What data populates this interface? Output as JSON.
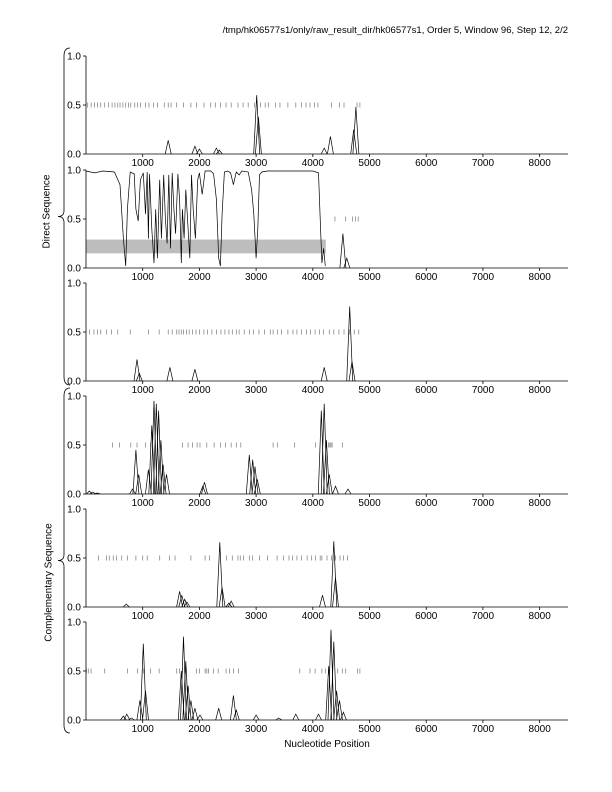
{
  "header": {
    "title": "/tmp/hk06577s1/only/raw_result_dir/hk06577s1, Order 5, Window 96, Step 12, 2/2"
  },
  "groups": {
    "direct": "Direct Sequence",
    "complementary": "Complementary Sequence"
  },
  "chart_data": {
    "type": "line",
    "xlabel": "Nucleotide Position",
    "xlim": [
      0,
      8500
    ],
    "ylim": [
      0,
      1
    ],
    "xticks": [
      1000,
      2000,
      3000,
      4000,
      5000,
      6000,
      7000,
      8000
    ],
    "yticks": [
      0.0,
      0.5,
      1.0
    ],
    "ytick_labels": [
      "0.0",
      "0.5",
      "1.0"
    ],
    "panels": [
      {
        "group": "direct",
        "tick_row_y": 0.5,
        "tick_marks": [
          30,
          90,
          150,
          200,
          260,
          330,
          400,
          460,
          510,
          560,
          600,
          650,
          700,
          750,
          790,
          860,
          910,
          960,
          1050,
          1110,
          1190,
          1260,
          1380,
          1450,
          1500,
          1600,
          1720,
          1850,
          1950,
          2080,
          2200,
          2280,
          2370,
          2470,
          2560,
          2680,
          2770,
          2860,
          2970,
          3080,
          3160,
          3220,
          3340,
          3420,
          3560,
          3700,
          3800,
          3880,
          3950,
          4030,
          4090,
          4330,
          4470,
          4550,
          4780,
          4830
        ],
        "peaks": [
          [
            1450,
            0.14
          ],
          [
            1920,
            0.08
          ],
          [
            2000,
            0.05
          ],
          [
            2300,
            0.06
          ],
          [
            2350,
            0.04
          ],
          [
            3010,
            0.6
          ],
          [
            3040,
            0.38
          ],
          [
            4200,
            0.06
          ],
          [
            4310,
            0.18
          ],
          [
            4720,
            0.25
          ],
          [
            4760,
            0.48
          ]
        ]
      },
      {
        "group": "direct",
        "tick_row_y": 0.5,
        "tick_marks": [
          4390,
          4580,
          4700,
          4750,
          4800
        ],
        "shaded_band": {
          "x": [
            0,
            4230
          ],
          "y": [
            0.15,
            0.29
          ]
        },
        "peaks": [
          [
            4530,
            0.35
          ],
          [
            4600,
            0.1
          ]
        ],
        "profile": [
          [
            0,
            0.99
          ],
          [
            150,
            0.97
          ],
          [
            300,
            0.99
          ],
          [
            500,
            0.98
          ],
          [
            600,
            0.85
          ],
          [
            660,
            0.3
          ],
          [
            700,
            0.02
          ],
          [
            730,
            0.6
          ],
          [
            780,
            0.98
          ],
          [
            850,
            0.96
          ],
          [
            880,
            0.6
          ],
          [
            920,
            0.48
          ],
          [
            960,
            0.9
          ],
          [
            1010,
            0.97
          ],
          [
            1050,
            0.55
          ],
          [
            1080,
            0.98
          ],
          [
            1100,
            0.3
          ],
          [
            1120,
            0.96
          ],
          [
            1160,
            0.4
          ],
          [
            1200,
            0.05
          ],
          [
            1230,
            0.6
          ],
          [
            1260,
            0.1
          ],
          [
            1300,
            0.9
          ],
          [
            1330,
            0.3
          ],
          [
            1370,
            0.95
          ],
          [
            1400,
            0.5
          ],
          [
            1430,
            0.25
          ],
          [
            1460,
            0.95
          ],
          [
            1490,
            0.2
          ],
          [
            1520,
            0.97
          ],
          [
            1550,
            0.6
          ],
          [
            1580,
            0.35
          ],
          [
            1620,
            0.96
          ],
          [
            1650,
            0.7
          ],
          [
            1680,
            0.05
          ],
          [
            1700,
            0.6
          ],
          [
            1730,
            0.3
          ],
          [
            1760,
            0.8
          ],
          [
            1800,
            0.4
          ],
          [
            1830,
            0.1
          ],
          [
            1860,
            0.95
          ],
          [
            1890,
            0.6
          ],
          [
            1930,
            0.3
          ],
          [
            1970,
            0.9
          ],
          [
            2000,
            0.97
          ],
          [
            2050,
            0.75
          ],
          [
            2100,
            0.99
          ],
          [
            2200,
            0.99
          ],
          [
            2250,
            0.96
          ],
          [
            2300,
            0.7
          ],
          [
            2340,
            0.1
          ],
          [
            2370,
            0.02
          ],
          [
            2400,
            0.55
          ],
          [
            2440,
            0.98
          ],
          [
            2500,
            0.99
          ],
          [
            2550,
            0.97
          ],
          [
            2600,
            0.85
          ],
          [
            2650,
            0.98
          ],
          [
            2700,
            0.95
          ],
          [
            2750,
            0.99
          ],
          [
            2860,
            0.98
          ],
          [
            2920,
            0.8
          ],
          [
            2960,
            0.55
          ],
          [
            3000,
            0.1
          ],
          [
            3030,
            0.4
          ],
          [
            3060,
            0.95
          ],
          [
            3100,
            0.98
          ],
          [
            3200,
            0.99
          ],
          [
            3500,
            0.99
          ],
          [
            3800,
            0.99
          ],
          [
            4000,
            0.99
          ],
          [
            4100,
            0.97
          ],
          [
            4130,
            0.5
          ],
          [
            4160,
            0.05
          ],
          [
            4190,
            0.2
          ],
          [
            4220,
            0.02
          ]
        ]
      },
      {
        "group": "direct",
        "tick_row_y": 0.5,
        "tick_marks": [
          60,
          140,
          200,
          260,
          360,
          450,
          560,
          780,
          1100,
          1290,
          1450,
          1520,
          1600,
          1640,
          1680,
          1720,
          1770,
          1820,
          1880,
          1940,
          2000,
          2080,
          2140,
          2220,
          2300,
          2380,
          2450,
          2520,
          2580,
          2650,
          2700,
          2790,
          2880,
          2950,
          3050,
          3150,
          3250,
          3300,
          3380,
          3450,
          3560,
          3650,
          3720,
          3800,
          3890,
          3960,
          4040,
          4120,
          4190,
          4290,
          4370,
          4460,
          4550,
          4650,
          4730,
          4810
        ],
        "peaks": [
          [
            900,
            0.22
          ],
          [
            940,
            0.08
          ],
          [
            1480,
            0.14
          ],
          [
            1920,
            0.12
          ],
          [
            4200,
            0.14
          ],
          [
            4650,
            0.76
          ],
          [
            4690,
            0.2
          ]
        ]
      },
      {
        "group": "complementary",
        "tick_row_y": 0.5,
        "tick_marks": [
          470,
          590,
          790,
          900,
          1050,
          1140,
          1220,
          1700,
          1800,
          1880,
          1960,
          2010,
          2130,
          2260,
          2370,
          2460,
          2560,
          2650,
          2730,
          3300,
          3380,
          3680,
          4050,
          4280,
          4300,
          4320,
          4340,
          4520
        ],
        "peaks": [
          [
            60,
            0.03
          ],
          [
            120,
            0.02
          ],
          [
            200,
            0.01
          ],
          [
            820,
            0.05
          ],
          [
            880,
            0.45
          ],
          [
            930,
            0.2
          ],
          [
            1100,
            0.25
          ],
          [
            1160,
            0.7
          ],
          [
            1200,
            0.95
          ],
          [
            1240,
            0.92
          ],
          [
            1280,
            0.85
          ],
          [
            1320,
            0.55
          ],
          [
            1360,
            0.3
          ],
          [
            1420,
            0.2
          ],
          [
            2060,
            0.08
          ],
          [
            2090,
            0.12
          ],
          [
            2880,
            0.4
          ],
          [
            2940,
            0.35
          ],
          [
            2980,
            0.28
          ],
          [
            3020,
            0.15
          ],
          [
            4150,
            0.85
          ],
          [
            4200,
            0.92
          ],
          [
            4240,
            0.55
          ],
          [
            4290,
            0.2
          ],
          [
            4400,
            0.08
          ],
          [
            4620,
            0.05
          ]
        ]
      },
      {
        "group": "complementary",
        "tick_row_y": 0.5,
        "tick_marks": [
          220,
          360,
          410,
          480,
          540,
          630,
          730,
          880,
          1000,
          1080,
          1300,
          1470,
          1570,
          1850,
          2100,
          2180,
          2480,
          2580,
          2680,
          2720,
          2780,
          2880,
          2940,
          3060,
          3200,
          3370,
          3480,
          3580,
          3640,
          3720,
          3800,
          3900,
          3980,
          4050,
          4130,
          4160,
          4250,
          4330,
          4400,
          4480,
          4540,
          4610
        ],
        "peaks": [
          [
            710,
            0.03
          ],
          [
            1650,
            0.16
          ],
          [
            1690,
            0.12
          ],
          [
            1740,
            0.08
          ],
          [
            1780,
            0.05
          ],
          [
            2360,
            0.66
          ],
          [
            2400,
            0.2
          ],
          [
            2520,
            0.04
          ],
          [
            2560,
            0.06
          ],
          [
            4170,
            0.12
          ],
          [
            4370,
            0.67
          ],
          [
            4400,
            0.3
          ]
        ]
      },
      {
        "group": "complementary",
        "tick_row_y": 0.5,
        "tick_marks": [
          10,
          40,
          90,
          330,
          730,
          910,
          1010,
          1140,
          1290,
          1600,
          1650,
          1700,
          1760,
          1950,
          2000,
          2100,
          2130,
          2160,
          2250,
          2330,
          2470,
          2530,
          2600,
          2690,
          3770,
          3950,
          4040,
          4160,
          4220,
          4280,
          4350,
          4440,
          4520,
          4580,
          4790,
          4830
        ],
        "peaks": [
          [
            660,
            0.04
          ],
          [
            720,
            0.06
          ],
          [
            800,
            0.02
          ],
          [
            950,
            0.2
          ],
          [
            1010,
            0.78
          ],
          [
            1050,
            0.3
          ],
          [
            1680,
            0.5
          ],
          [
            1720,
            0.85
          ],
          [
            1760,
            0.6
          ],
          [
            1800,
            0.35
          ],
          [
            1850,
            0.2
          ],
          [
            1920,
            0.12
          ],
          [
            2010,
            0.05
          ],
          [
            2340,
            0.12
          ],
          [
            2600,
            0.25
          ],
          [
            2650,
            0.1
          ],
          [
            3000,
            0.05
          ],
          [
            3400,
            0.02
          ],
          [
            3700,
            0.06
          ],
          [
            4100,
            0.06
          ],
          [
            4280,
            0.55
          ],
          [
            4320,
            0.92
          ],
          [
            4370,
            0.8
          ],
          [
            4420,
            0.3
          ],
          [
            4470,
            0.2
          ],
          [
            4540,
            0.08
          ]
        ]
      }
    ]
  }
}
